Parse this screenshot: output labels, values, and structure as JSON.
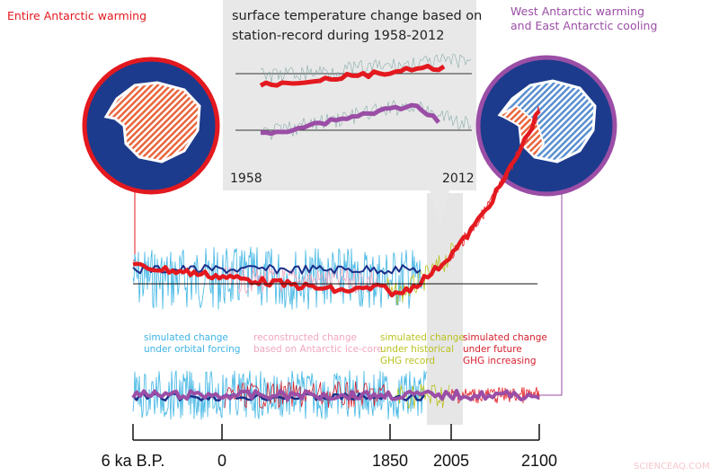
{
  "labels": {
    "left_title": "Entire Antarctic warming",
    "right_title_1": "West Antarctic warming",
    "right_title_2": "and East Antarctic cooling",
    "inset_title_1": "surface temperature change based on",
    "inset_title_2": "station-record during 1958-2012",
    "inset_start": "1958",
    "inset_end": "2012",
    "watermark": "SCIENCEAQ.COM"
  },
  "legend": [
    {
      "line1": "simulated change",
      "line2": "under orbital forcing",
      "line3": "",
      "color": "#3cb4e4"
    },
    {
      "line1": "reconstructed change",
      "line2": "based on Antarctic ice-core",
      "line3": "",
      "color": "#f2a6bf"
    },
    {
      "line1": "simulated change",
      "line2": "under historical",
      "line3": "GHG record",
      "color": "#b9c21e"
    },
    {
      "line1": "simulated change",
      "line2": "under future",
      "line3": "GHG increasing",
      "color": "#d6202e"
    }
  ],
  "axis_ticks": [
    "6 ka B.P.",
    "0",
    "1850",
    "2005",
    "2100"
  ],
  "colors": {
    "red": "#e3191f",
    "purple": "#9b4ea6",
    "navy": "#1d3b8c",
    "cyan": "#3cb4e4",
    "darkblue": "#1a2f8a"
  },
  "chart_data": {
    "type": "line",
    "title": "",
    "x_ticks": [
      "6 ka B.P.",
      "0",
      "1850",
      "2005",
      "2100"
    ],
    "panels": [
      {
        "name": "Entire Antarctic",
        "series": [
          {
            "name": "reconstructed/simulated mean",
            "trend": "slight cooling to 1850, then strong warming to 2100"
          }
        ]
      },
      {
        "name": "West/East Antarctic contrast",
        "series": [
          {
            "name": "mean",
            "trend": "near zero throughout"
          }
        ]
      }
    ]
  }
}
